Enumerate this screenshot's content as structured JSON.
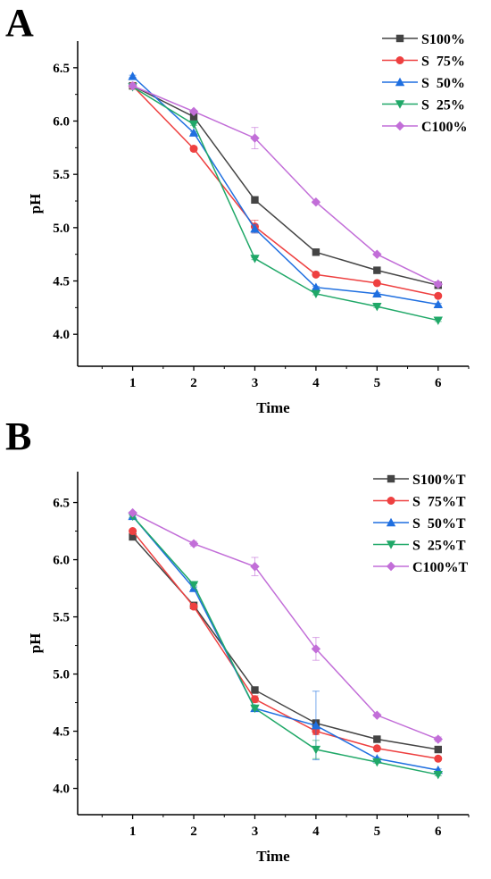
{
  "chart_data": [
    {
      "type": "line",
      "panel_label": "A",
      "xlabel": "Time",
      "ylabel": "pH",
      "x": [
        1,
        2,
        3,
        4,
        5,
        6
      ],
      "xlim": [
        0.1,
        6.5
      ],
      "ylim": [
        3.7,
        6.75
      ],
      "xticks": [
        1,
        2,
        3,
        4,
        5,
        6
      ],
      "yticks": [
        4.0,
        4.5,
        5.0,
        5.5,
        6.0,
        6.5
      ],
      "legend_position": "top-right",
      "series": [
        {
          "name": "S100%",
          "color": "#444444",
          "marker": "square",
          "values": [
            6.33,
            6.04,
            5.26,
            4.77,
            4.6,
            4.46
          ],
          "error": [
            0.02,
            0.02,
            0.03,
            0.01,
            0.01,
            0.01
          ]
        },
        {
          "name": "S  75%",
          "color": "#ee4040",
          "marker": "circle",
          "values": [
            6.33,
            5.74,
            5.01,
            4.56,
            4.48,
            4.36
          ],
          "error": [
            0.01,
            0.02,
            0.06,
            0.01,
            0.01,
            0.01
          ]
        },
        {
          "name": "S  50%",
          "color": "#1f6fe0",
          "marker": "triangle-up",
          "values": [
            6.42,
            5.89,
            4.99,
            4.44,
            4.38,
            4.28
          ],
          "error": [
            0.01,
            0.01,
            0.04,
            0.01,
            0.01,
            0.01
          ]
        },
        {
          "name": "S  25%",
          "color": "#20a868",
          "marker": "triangle-down",
          "values": [
            6.32,
            5.97,
            4.71,
            4.38,
            4.26,
            4.13
          ],
          "error": [
            0.01,
            0.01,
            0.01,
            0.01,
            0.01,
            0.01
          ]
        },
        {
          "name": "C100%",
          "color": "#c26ed8",
          "marker": "diamond",
          "values": [
            6.33,
            6.09,
            5.84,
            5.24,
            4.75,
            4.47
          ],
          "error": [
            0.02,
            0.01,
            0.1,
            0.01,
            0.01,
            0.02
          ]
        }
      ]
    },
    {
      "type": "line",
      "panel_label": "B",
      "xlabel": "Time",
      "ylabel": "pH",
      "x": [
        1,
        2,
        3,
        4,
        5,
        6
      ],
      "xlim": [
        0.1,
        6.5
      ],
      "ylim": [
        3.77,
        6.77
      ],
      "xticks": [
        1,
        2,
        3,
        4,
        5,
        6
      ],
      "yticks": [
        4.0,
        4.5,
        5.0,
        5.5,
        6.0,
        6.5
      ],
      "legend_position": "top-right",
      "series": [
        {
          "name": "S100%T",
          "color": "#444444",
          "marker": "square",
          "values": [
            6.2,
            5.6,
            4.86,
            4.57,
            4.43,
            4.34
          ],
          "error": [
            0.01,
            0.01,
            0.02,
            0.03,
            0.01,
            0.01
          ]
        },
        {
          "name": "S  75%T",
          "color": "#ee4040",
          "marker": "circle",
          "values": [
            6.25,
            5.59,
            4.78,
            4.5,
            4.35,
            4.26
          ],
          "error": [
            0.01,
            0.01,
            0.03,
            0.03,
            0.01,
            0.01
          ]
        },
        {
          "name": "S  50%T",
          "color": "#1f6fe0",
          "marker": "triangle-up",
          "values": [
            6.38,
            5.75,
            4.7,
            4.55,
            4.26,
            4.16
          ],
          "error": [
            0.01,
            0.01,
            0.02,
            0.3,
            0.01,
            0.01
          ]
        },
        {
          "name": "S  25%T",
          "color": "#20a868",
          "marker": "triangle-down",
          "values": [
            6.38,
            5.78,
            4.7,
            4.34,
            4.23,
            4.12
          ],
          "error": [
            0.01,
            0.01,
            0.01,
            0.08,
            0.01,
            0.01
          ]
        },
        {
          "name": "C100%T",
          "color": "#c26ed8",
          "marker": "diamond",
          "values": [
            6.41,
            6.14,
            5.94,
            5.22,
            4.64,
            4.43
          ],
          "error": [
            0.01,
            0.02,
            0.08,
            0.1,
            0.01,
            0.02
          ]
        }
      ]
    }
  ]
}
